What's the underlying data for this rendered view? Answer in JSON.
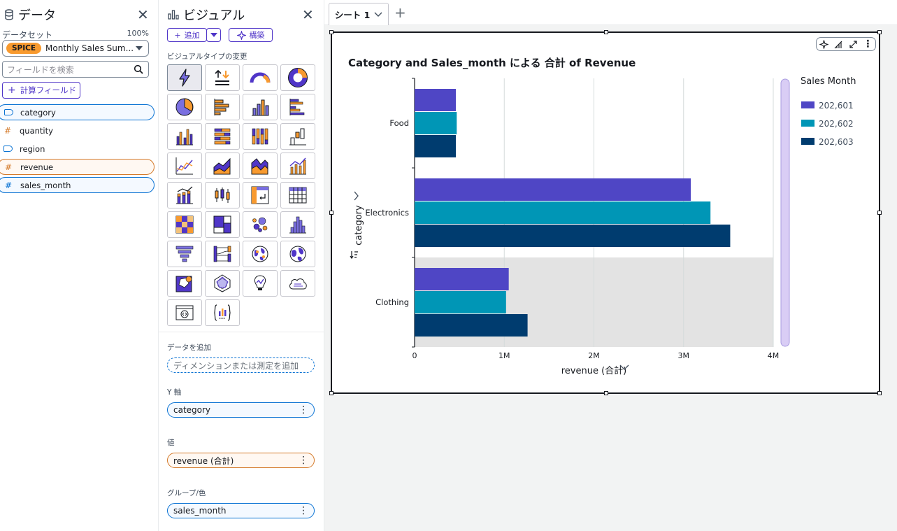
{
  "data_panel": {
    "title": "データ",
    "dataset_label": "データセット",
    "dataset_percent": "100%",
    "spice_badge": "SPICE",
    "dataset_name": "Monthly Sales Sum...",
    "search_placeholder": "フィールドを検索",
    "calc_field_label": "計算フィールド",
    "fields": [
      {
        "name": "category",
        "type": "dimension"
      },
      {
        "name": "quantity",
        "type": "measure"
      },
      {
        "name": "region",
        "type": "dimension"
      },
      {
        "name": "revenue",
        "type": "measure"
      },
      {
        "name": "sales_month",
        "type": "measure"
      }
    ]
  },
  "visual_panel": {
    "title": "ビジュアル",
    "add_label": "追加",
    "build_label": "構築",
    "type_change_label": "ビジュアルタイプの変更",
    "add_data_label": "データを追加",
    "add_data_placeholder": "ディメンションまたは測定を追加",
    "y_axis_label": "Y 軸",
    "y_axis_field": "category",
    "value_label": "値",
    "value_field": "revenue (合計)",
    "group_label": "グループ/色",
    "group_field": "sales_month"
  },
  "canvas": {
    "sheet_tab": "シート 1",
    "visual_title": "Category and Sales_month による 合計 of Revenue"
  },
  "colors": {
    "accent": "#5036c8",
    "series1": "#4f46c5",
    "series2": "#0096b6",
    "series3": "#003c6f"
  },
  "chart_data": {
    "type": "bar",
    "orientation": "horizontal",
    "categories": [
      "Food",
      "Electronics",
      "Clothing"
    ],
    "series": [
      {
        "name": "202,601",
        "values": [
          460000,
          3080000,
          1050000
        ]
      },
      {
        "name": "202,602",
        "values": [
          470000,
          3300000,
          1020000
        ]
      },
      {
        "name": "202,603",
        "values": [
          460000,
          3520000,
          1260000
        ]
      }
    ],
    "x_ticks": [
      "0",
      "1M",
      "2M",
      "3M",
      "4M"
    ],
    "xlim": [
      0,
      4000000
    ],
    "xlabel": "revenue (合計)",
    "ylabel": "category",
    "legend_title": "Sales Month",
    "legend_position": "right",
    "highlighted_category": "Clothing",
    "grid": true
  }
}
